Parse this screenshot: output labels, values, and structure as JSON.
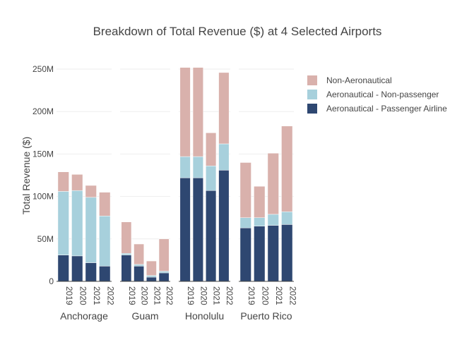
{
  "chart_data": {
    "type": "bar",
    "stacked": true,
    "title": "Breakdown of Total Revenue ($) at 4 Selected Airports",
    "xlabel": "",
    "ylabel": "Total Revenue ($)",
    "ylim": [
      0,
      265000000
    ],
    "yticks": [
      0,
      50000000,
      100000000,
      150000000,
      200000000,
      250000000
    ],
    "ytick_labels": [
      "0",
      "50M",
      "100M",
      "150M",
      "200M",
      "250M"
    ],
    "grid": true,
    "legend_position": "top-right",
    "categories": [
      "2019",
      "2020",
      "2021",
      "2022"
    ],
    "groups": [
      {
        "name": "Anchorage",
        "series": [
          {
            "name": "Aeronautical - Passenger Airline",
            "values": [
              31000000,
              30000000,
              22000000,
              18000000
            ]
          },
          {
            "name": "Aeronautical - Non-passenger",
            "values": [
              75000000,
              77000000,
              77000000,
              59000000
            ]
          },
          {
            "name": "Non-Aeronautical",
            "values": [
              23000000,
              19000000,
              14000000,
              28000000
            ]
          }
        ]
      },
      {
        "name": "Guam",
        "series": [
          {
            "name": "Aeronautical - Passenger Airline",
            "values": [
              31000000,
              18000000,
              5000000,
              10000000
            ]
          },
          {
            "name": "Aeronautical - Non-passenger",
            "values": [
              2000000,
              2000000,
              2000000,
              2000000
            ]
          },
          {
            "name": "Non-Aeronautical",
            "values": [
              37000000,
              24000000,
              17000000,
              38000000
            ]
          }
        ]
      },
      {
        "name": "Honolulu",
        "series": [
          {
            "name": "Aeronautical - Passenger Airline",
            "values": [
              122000000,
              122000000,
              107000000,
              131000000
            ]
          },
          {
            "name": "Aeronautical - Non-passenger",
            "values": [
              25000000,
              25000000,
              29000000,
              31000000
            ]
          },
          {
            "name": "Non-Aeronautical",
            "values": [
              105000000,
              105000000,
              39000000,
              84000000
            ]
          }
        ]
      },
      {
        "name": "Puerto Rico",
        "series": [
          {
            "name": "Aeronautical - Passenger Airline",
            "values": [
              63000000,
              65000000,
              66000000,
              67000000
            ]
          },
          {
            "name": "Aeronautical - Non-passenger",
            "values": [
              12000000,
              10000000,
              13000000,
              15000000
            ]
          },
          {
            "name": "Non-Aeronautical",
            "values": [
              65000000,
              37000000,
              72000000,
              101000000
            ]
          }
        ]
      }
    ],
    "legend": [
      {
        "name": "Non-Aeronautical",
        "color": "#d9b1ac"
      },
      {
        "name": "Aeronautical - Non-passenger",
        "color": "#a7d0dc"
      },
      {
        "name": "Aeronautical - Passenger Airline",
        "color": "#2e4771"
      }
    ],
    "colors": {
      "Aeronautical - Passenger Airline": "#2e4771",
      "Aeronautical - Non-passenger": "#a7d0dc",
      "Non-Aeronautical": "#d9b1ac"
    }
  }
}
